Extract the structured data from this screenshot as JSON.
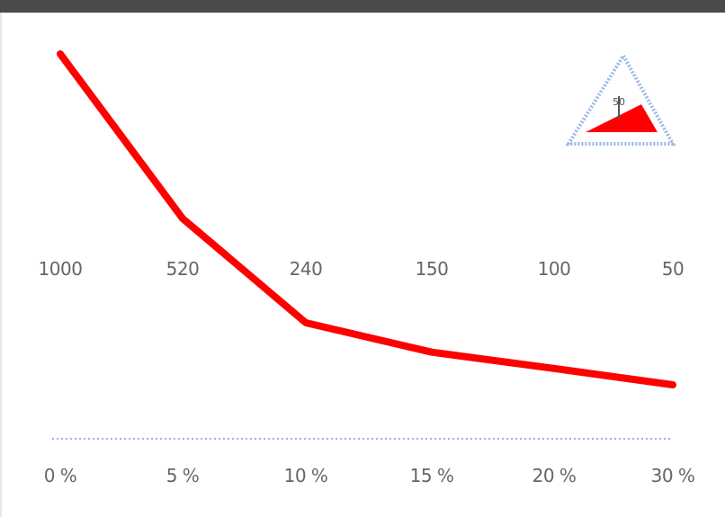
{
  "chart_data": {
    "type": "line",
    "categories": [
      "0 %",
      "5 %",
      "10 %",
      "15 %",
      "20 %",
      "30 %"
    ],
    "top_labels": [
      "1000",
      "520",
      "240",
      "150",
      "100",
      "50"
    ],
    "series": [
      {
        "values": [
          1000,
          520,
          240,
          150,
          100,
          50
        ],
        "color": "#ff0000"
      }
    ],
    "ylim": [
      0,
      1000
    ],
    "grid": false,
    "baseline_style": "dotted",
    "baseline_color": "#aaaaee",
    "logo": {
      "icon": "triangle-warning-icon",
      "text": "50",
      "color": "#ff0000",
      "outline_color": "#9ab8e6"
    }
  }
}
